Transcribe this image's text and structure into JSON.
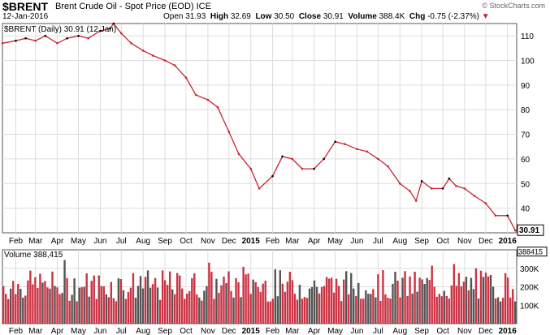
{
  "header": {
    "symbol": "$BRENT",
    "name": "Brent Crude Oil - Spot Price (EOD) ICE",
    "date": "12-Jan-2016",
    "copyright": "© StockCharts.com",
    "open_label": "Open",
    "open": "31.93",
    "high_label": "High",
    "high": "32.69",
    "low_label": "Low",
    "low": "30.50",
    "close_label": "Close",
    "close": "30.91",
    "volume_label": "Volume",
    "volume": "388.4K",
    "chg_label": "Chg",
    "chg": "-0.75 (-2.37%)"
  },
  "colors": {
    "up": "#000000",
    "down": "#cc2233",
    "grid": "#dddddd",
    "vol_up": "#555555",
    "vol_down": "#cc3344"
  },
  "chart_data": [
    {
      "type": "line",
      "legend": "$BRENT (Daily) 30.91 (12 Jan)",
      "last_value_label": "30.91",
      "ylim": [
        30,
        115
      ],
      "yticks": [
        40,
        50,
        60,
        70,
        80,
        90,
        100,
        110
      ],
      "x_tick_labels": [
        "Feb",
        "Mar",
        "Apr",
        "May",
        "Jun",
        "Jul",
        "Aug",
        "Sep",
        "Oct",
        "Nov",
        "Dec",
        "2015",
        "Feb",
        "Mar",
        "Apr",
        "May",
        "Jun",
        "Jul",
        "Aug",
        "Sep",
        "Oct",
        "Nov",
        "Dec",
        "2016"
      ],
      "grid": true,
      "series": [
        {
          "x": [
            "2014-01-13",
            "2014-02-01",
            "2014-02-15",
            "2014-03-01",
            "2014-03-15",
            "2014-04-01",
            "2014-04-15",
            "2014-05-01",
            "2014-05-15",
            "2014-06-01",
            "2014-06-15",
            "2014-06-20",
            "2014-07-01",
            "2014-07-15",
            "2014-08-01",
            "2014-08-15",
            "2014-09-01",
            "2014-09-15",
            "2014-10-01",
            "2014-10-15",
            "2014-11-01",
            "2014-11-15",
            "2014-12-01",
            "2014-12-15",
            "2015-01-01",
            "2015-01-13",
            "2015-02-01",
            "2015-02-15",
            "2015-03-01",
            "2015-03-15",
            "2015-04-01",
            "2015-04-15",
            "2015-05-01",
            "2015-05-15",
            "2015-06-01",
            "2015-06-15",
            "2015-07-01",
            "2015-07-15",
            "2015-08-01",
            "2015-08-15",
            "2015-08-24",
            "2015-09-01",
            "2015-09-15",
            "2015-10-01",
            "2015-10-10",
            "2015-10-20",
            "2015-11-01",
            "2015-11-15",
            "2015-12-01",
            "2015-12-15",
            "2016-01-01",
            "2016-01-12"
          ],
          "values": [
            107,
            108,
            109,
            108,
            110,
            107,
            109,
            110,
            109,
            112,
            113,
            115,
            111,
            107,
            104,
            102,
            100,
            98,
            93,
            86,
            84,
            81,
            71,
            62,
            56,
            48,
            53,
            61,
            60,
            56,
            56,
            60,
            67,
            66,
            64,
            63,
            60,
            57,
            50,
            47,
            43,
            51,
            48,
            48,
            52,
            49,
            48,
            45,
            42,
            37,
            37,
            30.91
          ]
        }
      ]
    },
    {
      "type": "bar",
      "legend": "Volume 388,415",
      "last_value_label": "388415",
      "yticks_labels": [
        "100K",
        "200K",
        "300K"
      ],
      "yticks": [
        100000,
        200000,
        300000
      ],
      "ylim": [
        0,
        400000
      ],
      "x_tick_labels": [
        "Feb",
        "Mar",
        "Apr",
        "May",
        "Jun",
        "Jul",
        "Aug",
        "Sep",
        "Oct",
        "Nov",
        "Dec",
        "2015",
        "Feb",
        "Mar",
        "Apr",
        "May",
        "Jun",
        "Jul",
        "Aug",
        "Sep",
        "Oct",
        "Nov",
        "Dec",
        "2016"
      ]
    }
  ]
}
